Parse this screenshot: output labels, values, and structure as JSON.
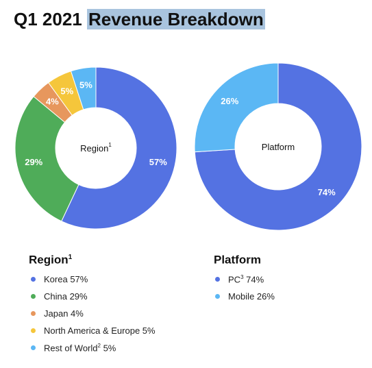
{
  "title": {
    "prefix": "Q1 2021",
    "highlighted": "Revenue Breakdown"
  },
  "colors": {
    "korea": "#5472e2",
    "china": "#4fac59",
    "japan": "#e7975d",
    "north_america_europe": "#f5c63b",
    "rest_of_world": "#5bb7f4",
    "pc": "#5472e2",
    "mobile": "#5bb7f4",
    "title_highlight": "#a9c4de"
  },
  "chart_data": [
    {
      "type": "pie",
      "variant": "donut",
      "center_label": "Region",
      "center_label_sup": "1",
      "categories": [
        "Korea",
        "China",
        "Japan",
        "North America & Europe",
        "Rest of World"
      ],
      "values": [
        57,
        29,
        4,
        5,
        5
      ],
      "data_labels": [
        "57%",
        "29%",
        "4%",
        "5%",
        "5%"
      ],
      "colors": [
        "#5472e2",
        "#4fac59",
        "#e7975d",
        "#f5c63b",
        "#5bb7f4"
      ],
      "start": "12 o'clock",
      "direction": "clockwise",
      "legend": {
        "heading": "Region",
        "heading_sup": "1",
        "placement": "bottom-left",
        "items": [
          {
            "label": "Korea",
            "sup": "",
            "value": "57%"
          },
          {
            "label": "China",
            "sup": "",
            "value": "29%"
          },
          {
            "label": "Japan",
            "sup": "",
            "value": "4%"
          },
          {
            "label": "North America & Europe",
            "sup": "",
            "value": "5%"
          },
          {
            "label": "Rest of World",
            "sup": "2",
            "value": "5%"
          }
        ]
      }
    },
    {
      "type": "pie",
      "variant": "donut",
      "center_label": "Platform",
      "center_label_sup": "",
      "categories": [
        "PC",
        "Mobile"
      ],
      "values": [
        74,
        26
      ],
      "data_labels": [
        "74%",
        "26%"
      ],
      "colors": [
        "#5472e2",
        "#5bb7f4"
      ],
      "start": "12 o'clock",
      "direction": "clockwise",
      "legend": {
        "heading": "Platform",
        "heading_sup": "",
        "placement": "bottom-right",
        "items": [
          {
            "label": "PC",
            "sup": "3",
            "value": "74%"
          },
          {
            "label": "Mobile",
            "sup": "",
            "value": "26%"
          }
        ]
      }
    }
  ]
}
